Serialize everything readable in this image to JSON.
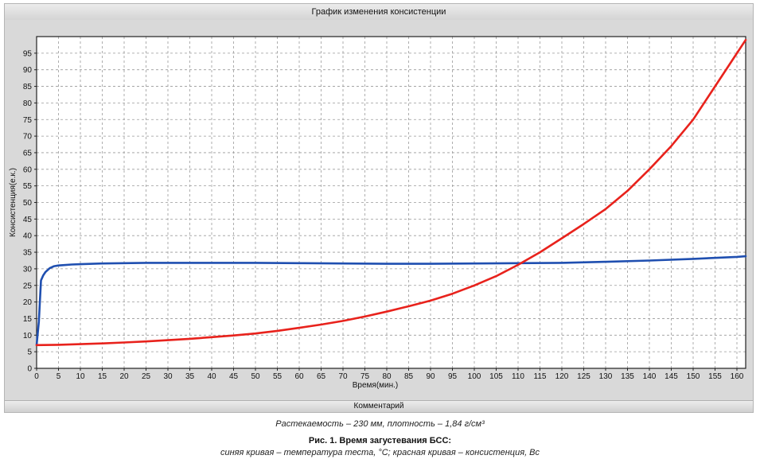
{
  "window": {
    "title": "График изменения консистенции",
    "comment_label": "Комментарий"
  },
  "caption": {
    "note": "Растекаемость – 230 мм, плотность – 1,84 г/см³",
    "figure_title": "Рис. 1. Время загустевания БСС:",
    "legend": "синяя кривая – температура теста, °C; красная кривая – консистенция, Вс"
  },
  "chart_data": {
    "type": "line",
    "title": "График изменения консистенции",
    "xlabel": "Время(мин.)",
    "ylabel": "Консистенция(е.к.)",
    "xlim": [
      0,
      162
    ],
    "ylim": [
      0,
      100
    ],
    "xticks": [
      0,
      5,
      10,
      15,
      20,
      25,
      30,
      35,
      40,
      45,
      50,
      55,
      60,
      65,
      70,
      75,
      80,
      85,
      90,
      95,
      100,
      105,
      110,
      115,
      120,
      125,
      130,
      135,
      140,
      145,
      150,
      155,
      160
    ],
    "yticks": [
      0,
      5,
      10,
      15,
      20,
      25,
      30,
      35,
      40,
      45,
      50,
      55,
      60,
      65,
      70,
      75,
      80,
      85,
      90,
      95
    ],
    "grid": true,
    "series": [
      {
        "color": "#1f4fb0",
        "x": [
          0,
          0.5,
          1,
          1.5,
          2,
          3,
          4,
          5,
          6,
          8,
          10,
          15,
          20,
          25,
          30,
          40,
          50,
          60,
          70,
          80,
          90,
          100,
          110,
          120,
          130,
          140,
          150,
          160,
          162
        ],
        "y": [
          7,
          14,
          26.5,
          28,
          29,
          30.2,
          30.8,
          31,
          31.1,
          31.3,
          31.4,
          31.6,
          31.7,
          31.8,
          31.8,
          31.8,
          31.8,
          31.7,
          31.6,
          31.5,
          31.5,
          31.6,
          31.7,
          31.8,
          32.1,
          32.5,
          33,
          33.6,
          33.8
        ]
      },
      {
        "color": "#e8221c",
        "x": [
          0,
          5,
          10,
          15,
          20,
          25,
          30,
          35,
          40,
          45,
          50,
          55,
          60,
          65,
          70,
          75,
          80,
          85,
          90,
          95,
          100,
          105,
          110,
          115,
          120,
          125,
          130,
          135,
          140,
          145,
          150,
          155,
          160,
          162
        ],
        "y": [
          7,
          7.1,
          7.3,
          7.5,
          7.8,
          8.1,
          8.5,
          8.9,
          9.4,
          9.9,
          10.5,
          11.3,
          12.2,
          13.2,
          14.3,
          15.6,
          17.1,
          18.7,
          20.4,
          22.5,
          25,
          27.8,
          31.2,
          35,
          39.2,
          43.5,
          48,
          53.5,
          60,
          67,
          75,
          85,
          95,
          99
        ]
      }
    ]
  }
}
